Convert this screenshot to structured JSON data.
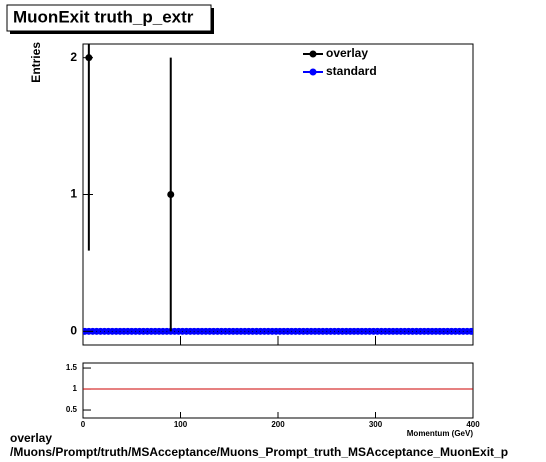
{
  "header": {
    "title": "MuonExit truth_p_extr"
  },
  "footer": {
    "label": "overlay",
    "path": "/Muons/Prompt/truth/MSAcceptance/Muons_Prompt_truth_MSAcceptance_MuonExit_p"
  },
  "chart_data": [
    {
      "type": "errorbar",
      "y_label": "Entries",
      "x": [
        2,
        6,
        10,
        14,
        18,
        22,
        26,
        30,
        34,
        38,
        42,
        46,
        50,
        54,
        58,
        62,
        66,
        70,
        74,
        78,
        82,
        86,
        90,
        94,
        98,
        102,
        106,
        110,
        114,
        118,
        122,
        126,
        130,
        134,
        138,
        142,
        146,
        150,
        154,
        158,
        162,
        166,
        170,
        174,
        178,
        182,
        186,
        190,
        194,
        198,
        202,
        206,
        210,
        214,
        218,
        222,
        226,
        230,
        234,
        238,
        242,
        246,
        250,
        254,
        258,
        262,
        266,
        270,
        274,
        278,
        282,
        286,
        290,
        294,
        298,
        302,
        306,
        310,
        314,
        318,
        322,
        326,
        330,
        334,
        338,
        342,
        346,
        350,
        354,
        358,
        362,
        366,
        370,
        374,
        378,
        382,
        386,
        390,
        394,
        398
      ],
      "series": [
        {
          "name": "overlay",
          "color": "#000000",
          "values": [
            0,
            2,
            0,
            0,
            0,
            0,
            0,
            0,
            0,
            0,
            0,
            0,
            0,
            0,
            0,
            0,
            0,
            0,
            0,
            0,
            0,
            0,
            1,
            0,
            0,
            0,
            0,
            0,
            0,
            0,
            0,
            0,
            0,
            0,
            0,
            0,
            0,
            0,
            0,
            0,
            0,
            0,
            0,
            0,
            0,
            0,
            0,
            0,
            0,
            0,
            0,
            0,
            0,
            0,
            0,
            0,
            0,
            0,
            0,
            0,
            0,
            0,
            0,
            0,
            0,
            0,
            0,
            0,
            0,
            0,
            0,
            0,
            0,
            0,
            0,
            0,
            0,
            0,
            0,
            0,
            0,
            0,
            0,
            0,
            0,
            0,
            0,
            0,
            0,
            0,
            0,
            0,
            0,
            0,
            0,
            0,
            0,
            0,
            0,
            0
          ],
          "errors": [
            0,
            1.41,
            0,
            0,
            0,
            0,
            0,
            0,
            0,
            0,
            0,
            0,
            0,
            0,
            0,
            0,
            0,
            0,
            0,
            0,
            0,
            0,
            1,
            0,
            0,
            0,
            0,
            0,
            0,
            0,
            0,
            0,
            0,
            0,
            0,
            0,
            0,
            0,
            0,
            0,
            0,
            0,
            0,
            0,
            0,
            0,
            0,
            0,
            0,
            0,
            0,
            0,
            0,
            0,
            0,
            0,
            0,
            0,
            0,
            0,
            0,
            0,
            0,
            0,
            0,
            0,
            0,
            0,
            0,
            0,
            0,
            0,
            0,
            0,
            0,
            0,
            0,
            0,
            0,
            0,
            0,
            0,
            0,
            0,
            0,
            0,
            0,
            0,
            0,
            0,
            0,
            0,
            0,
            0,
            0,
            0,
            0,
            0,
            0,
            0
          ]
        },
        {
          "name": "standard",
          "color": "#0000ff",
          "values": [
            0,
            0,
            0,
            0,
            0,
            0,
            0,
            0,
            0,
            0,
            0,
            0,
            0,
            0,
            0,
            0,
            0,
            0,
            0,
            0,
            0,
            0,
            0,
            0,
            0,
            0,
            0,
            0,
            0,
            0,
            0,
            0,
            0,
            0,
            0,
            0,
            0,
            0,
            0,
            0,
            0,
            0,
            0,
            0,
            0,
            0,
            0,
            0,
            0,
            0,
            0,
            0,
            0,
            0,
            0,
            0,
            0,
            0,
            0,
            0,
            0,
            0,
            0,
            0,
            0,
            0,
            0,
            0,
            0,
            0,
            0,
            0,
            0,
            0,
            0,
            0,
            0,
            0,
            0,
            0,
            0,
            0,
            0,
            0,
            0,
            0,
            0,
            0,
            0,
            0,
            0,
            0,
            0,
            0,
            0,
            0,
            0,
            0,
            0,
            0
          ]
        }
      ],
      "xlim": [
        0,
        400
      ],
      "xticks": [
        0,
        100,
        200,
        300,
        400
      ],
      "ylim": [
        -0.1,
        2.1
      ],
      "yticks": [
        0,
        1,
        2
      ],
      "legend": "top-right"
    },
    {
      "type": "ratio",
      "x_label": "Momentum (GeV)",
      "xlim": [
        0,
        400
      ],
      "xticks": [
        0,
        100,
        200,
        300,
        400
      ],
      "ylim": [
        0.31,
        1.62
      ],
      "yticks": [
        0.5,
        1,
        1.5
      ],
      "reference_line": 1,
      "reference_color": "#cc0000"
    }
  ]
}
